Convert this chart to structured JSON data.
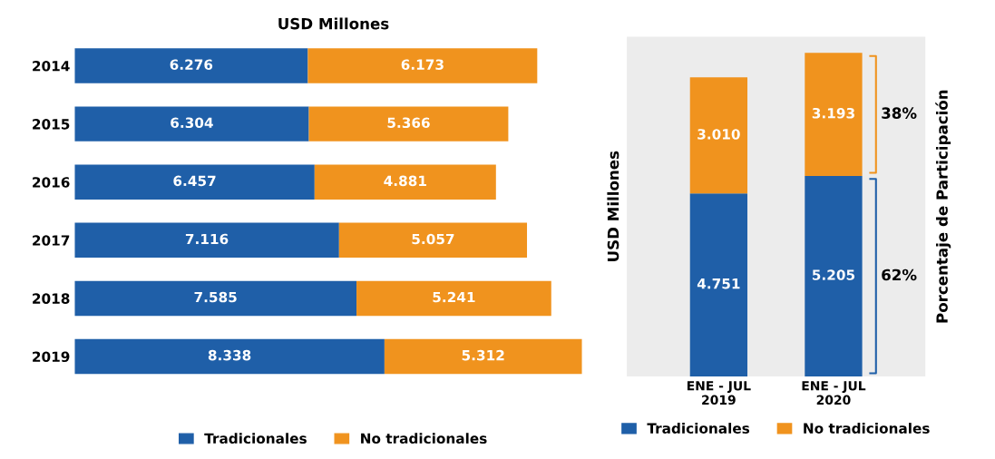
{
  "chart_data": [
    {
      "type": "bar",
      "orientation": "horizontal",
      "stacked": true,
      "title": "USD Millones",
      "categories": [
        "2014",
        "2015",
        "2016",
        "2017",
        "2018",
        "2019"
      ],
      "legend": "bottom",
      "series": [
        {
          "name": "Tradicionales",
          "color": "#1f5fa8",
          "values": [
            6276,
            6304,
            6457,
            7116,
            7585,
            8338
          ],
          "value_labels": [
            "6.276",
            "6.304",
            "6.457",
            "7.116",
            "7.585",
            "8.338"
          ]
        },
        {
          "name": "No tradicionales",
          "color": "#f0931e",
          "values": [
            6173,
            5366,
            4881,
            5057,
            5241,
            5312
          ],
          "value_labels": [
            "6.173",
            "5.366",
            "4.881",
            "5.057",
            "5.241",
            "5.312"
          ]
        }
      ]
    },
    {
      "type": "bar",
      "stacked": true,
      "ylabel": "USD Millones",
      "y2label": "Porcentaje de Participación",
      "categories": [
        "ENE - JUL\n2019",
        "ENE - JUL\n2020"
      ],
      "legend": "bottom",
      "annotations": [
        "38%",
        "62%"
      ],
      "series": [
        {
          "name": "Tradicionales",
          "color": "#1f5fa8",
          "values": [
            4751,
            5205
          ],
          "value_labels": [
            "4.751",
            "5.205"
          ]
        },
        {
          "name": "No tradicionales",
          "color": "#f0931e",
          "values": [
            3010,
            3193
          ],
          "value_labels": [
            "3.010",
            "3.193"
          ]
        }
      ]
    }
  ]
}
